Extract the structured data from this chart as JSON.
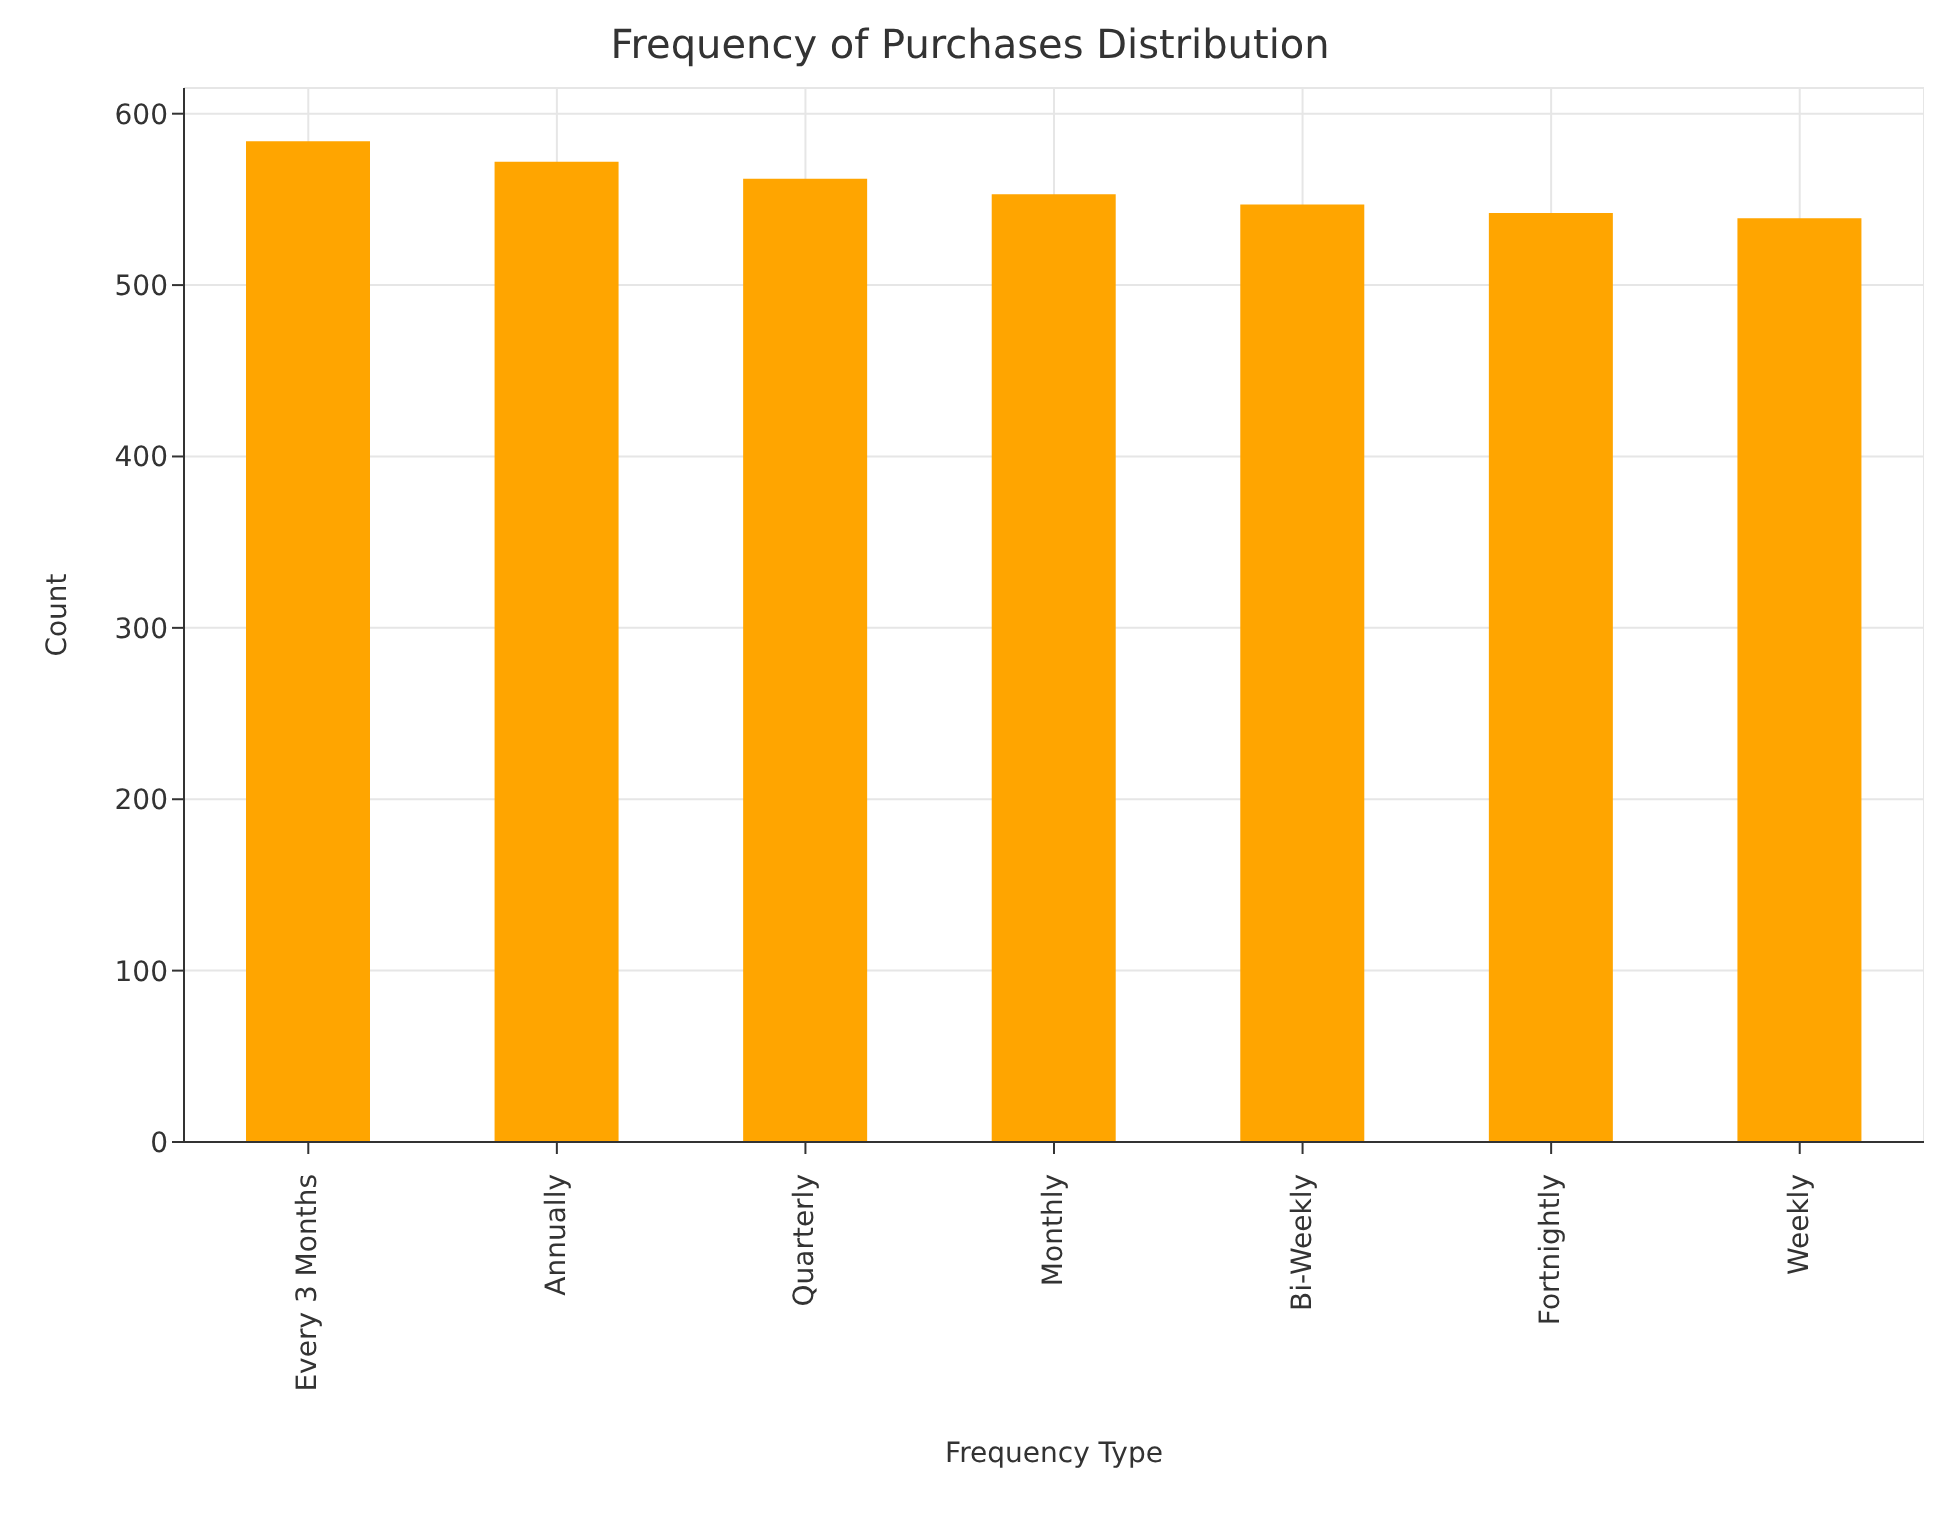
{
  "chart_data": {
    "type": "bar",
    "title": "Frequency of Purchases Distribution",
    "xlabel": "Frequency Type",
    "ylabel": "Count",
    "categories": [
      "Every 3 Months",
      "Annually",
      "Quarterly",
      "Monthly",
      "Bi-Weekly",
      "Fortnightly",
      "Weekly"
    ],
    "values": [
      584,
      572,
      562,
      553,
      547,
      542,
      539
    ],
    "color": "#ffa500",
    "ylim": [
      0,
      615
    ],
    "yticks": [
      0,
      100,
      200,
      300,
      400,
      500,
      600
    ],
    "grid": true
  }
}
